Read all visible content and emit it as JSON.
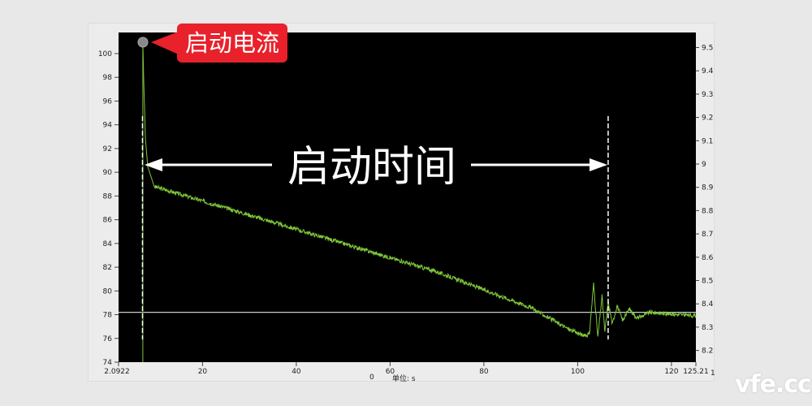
{
  "chart_data": {
    "type": "line",
    "xlim": [
      2.0922,
      125.21
    ],
    "ylim": [
      74,
      101.8
    ],
    "ylim_right": [
      8.15,
      9.55
    ],
    "x_ticks": [
      "2.0922",
      "20",
      "40",
      "60",
      "80",
      "100",
      "120",
      "125.21"
    ],
    "x_tick_values": [
      2.0922,
      20,
      40,
      60,
      80,
      100,
      120,
      125.21
    ],
    "y_ticks": [
      74,
      76,
      78,
      80,
      82,
      84,
      86,
      88,
      90,
      92,
      94,
      96,
      98,
      100
    ],
    "y_right_ticks": [
      "8.2",
      "8.3",
      "8.4",
      "8.5",
      "8.6",
      "8.7",
      "8.8",
      "8.9",
      "9",
      "9.1",
      "9.2",
      "9.3",
      "9.4",
      "9.5"
    ],
    "xlabel": "单位: s",
    "x_extra_labels": [
      "0",
      "1"
    ],
    "series": [
      {
        "color": "#7ec83a",
        "x": [
          7.27,
          7.45,
          7.8,
          8.3,
          9.7,
          30,
          50,
          70,
          90,
          98.0,
          101.5,
          102.5,
          103.4,
          104.3,
          105.2,
          105.8,
          106.5,
          107.4,
          108.4,
          109.6,
          111.0,
          112.7,
          115.3,
          125.2
        ],
        "y": [
          101,
          98,
          93,
          90.5,
          88.8,
          86.4,
          84.0,
          81.6,
          78.6,
          76.8,
          76.2,
          76.4,
          80.6,
          76.1,
          79.6,
          76.5,
          79.1,
          77.2,
          78.8,
          77.5,
          78.5,
          77.7,
          78.2,
          77.9
        ]
      }
    ],
    "reference_line": 78.2,
    "markers": {
      "start_t": 7.2,
      "end_t": 106.5
    },
    "annotations": {
      "start_current": "启动电流",
      "start_time": "启动时间"
    },
    "background": "#000000"
  },
  "watermark": "vfe.cc"
}
